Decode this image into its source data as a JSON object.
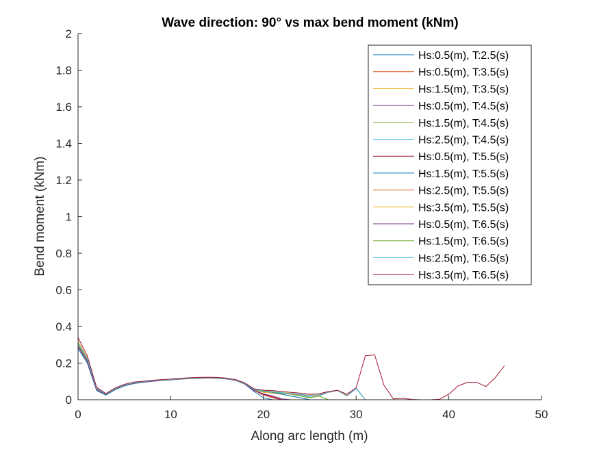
{
  "chart_data": {
    "type": "line",
    "title": "Wave direction: 90° vs max bend moment (kNm)",
    "xlabel": "Along arc length (m)",
    "ylabel": "Bend moment (kNm)",
    "xlim": [
      0,
      50
    ],
    "ylim": [
      0,
      2
    ],
    "xticks": [
      0,
      10,
      20,
      30,
      40,
      50
    ],
    "yticks": [
      0,
      0.2,
      0.4,
      0.6,
      0.8,
      1,
      1.2,
      1.4,
      1.6,
      1.8,
      2
    ],
    "xtick_labels": [
      "0",
      "10",
      "20",
      "30",
      "40",
      "50"
    ],
    "ytick_labels": [
      "0",
      "0.2",
      "0.4",
      "0.6",
      "0.8",
      "1",
      "1.2",
      "1.4",
      "1.6",
      "1.8",
      "2"
    ],
    "grid": false,
    "legend_position": "top-right",
    "x": [
      0,
      1,
      2,
      3,
      4,
      5,
      6,
      7,
      8,
      9,
      10,
      11,
      12,
      13,
      14,
      15,
      16,
      17,
      18,
      19,
      20,
      21,
      22,
      23,
      24,
      25,
      26,
      27,
      28,
      29,
      30,
      31,
      32,
      33,
      34,
      35,
      36,
      37,
      38,
      39,
      40,
      41,
      42,
      43,
      44,
      45,
      46
    ],
    "series": [
      {
        "name": "Hs:0.5(m), T:2.5(s)",
        "color": "#0072bd",
        "values": [
          0.28,
          0.2,
          0.05,
          0.025,
          0.055,
          0.075,
          0.088,
          0.095,
          0.1,
          0.105,
          0.108,
          0.112,
          0.115,
          0.117,
          0.118,
          0.117,
          0.113,
          0.105,
          0.085,
          0.045,
          0.01,
          0.0,
          0.0,
          0.0,
          0.0,
          0.0,
          0.0,
          0.0,
          0.0,
          0.0,
          0.0,
          0.0,
          0.0,
          0.0,
          0.0,
          0.0,
          0.0,
          0.0,
          0.0,
          0.0,
          0.0,
          0.0,
          0.0,
          0.0,
          0.0,
          0.0,
          0.0
        ]
      },
      {
        "name": "Hs:0.5(m), T:3.5(s)",
        "color": "#d95319",
        "values": [
          0.29,
          0.21,
          0.055,
          0.028,
          0.058,
          0.078,
          0.09,
          0.097,
          0.102,
          0.106,
          0.109,
          0.113,
          0.116,
          0.118,
          0.119,
          0.118,
          0.114,
          0.106,
          0.087,
          0.05,
          0.025,
          0.01,
          0.0,
          0.0,
          0.0,
          0.0,
          0.0,
          0.0,
          0.0,
          0.0,
          0.0,
          0.0,
          0.0,
          0.0,
          0.0,
          0.0,
          0.0,
          0.0,
          0.0,
          0.0,
          0.0,
          0.0,
          0.0,
          0.0,
          0.0,
          0.0,
          0.0
        ]
      },
      {
        "name": "Hs:1.5(m), T:3.5(s)",
        "color": "#edb120",
        "values": [
          0.3,
          0.215,
          0.058,
          0.03,
          0.06,
          0.08,
          0.092,
          0.098,
          0.103,
          0.107,
          0.11,
          0.114,
          0.117,
          0.119,
          0.12,
          0.119,
          0.115,
          0.107,
          0.088,
          0.052,
          0.04,
          0.035,
          0.03,
          0.02,
          0.01,
          0.0,
          0.0,
          0.0,
          0.0,
          0.0,
          0.0,
          0.0,
          0.0,
          0.0,
          0.0,
          0.0,
          0.0,
          0.0,
          0.0,
          0.0,
          0.0,
          0.0,
          0.0,
          0.0,
          0.0,
          0.0,
          0.0
        ]
      },
      {
        "name": "Hs:0.5(m), T:4.5(s)",
        "color": "#7e2f8e",
        "values": [
          0.29,
          0.21,
          0.056,
          0.029,
          0.059,
          0.079,
          0.091,
          0.097,
          0.102,
          0.106,
          0.109,
          0.113,
          0.116,
          0.118,
          0.119,
          0.118,
          0.114,
          0.106,
          0.087,
          0.05,
          0.03,
          0.015,
          0.0,
          0.0,
          0.0,
          0.0,
          0.0,
          0.0,
          0.0,
          0.0,
          0.0,
          0.0,
          0.0,
          0.0,
          0.0,
          0.0,
          0.0,
          0.0,
          0.0,
          0.0,
          0.0,
          0.0,
          0.0,
          0.0,
          0.0,
          0.0,
          0.0
        ]
      },
      {
        "name": "Hs:1.5(m), T:4.5(s)",
        "color": "#77ac30",
        "values": [
          0.3,
          0.22,
          0.06,
          0.03,
          0.06,
          0.08,
          0.092,
          0.098,
          0.103,
          0.107,
          0.11,
          0.114,
          0.117,
          0.119,
          0.12,
          0.119,
          0.115,
          0.107,
          0.088,
          0.055,
          0.045,
          0.04,
          0.035,
          0.03,
          0.02,
          0.01,
          0.02,
          0.0,
          0.0,
          0.0,
          0.0,
          0.0,
          0.0,
          0.0,
          0.0,
          0.0,
          0.0,
          0.0,
          0.0,
          0.0,
          0.0,
          0.0,
          0.0,
          0.0,
          0.0,
          0.0,
          0.0
        ]
      },
      {
        "name": "Hs:2.5(m), T:4.5(s)",
        "color": "#4dbeee",
        "values": [
          0.31,
          0.225,
          0.062,
          0.031,
          0.061,
          0.081,
          0.093,
          0.099,
          0.104,
          0.108,
          0.111,
          0.115,
          0.118,
          0.12,
          0.121,
          0.12,
          0.116,
          0.108,
          0.089,
          0.057,
          0.048,
          0.043,
          0.038,
          0.032,
          0.025,
          0.015,
          0.02,
          0.04,
          0.05,
          0.02,
          0.06,
          0.0,
          0.0,
          0.0,
          0.0,
          0.0,
          0.0,
          0.0,
          0.0,
          0.0,
          0.0,
          0.0,
          0.0,
          0.0,
          0.0,
          0.0,
          0.0
        ]
      },
      {
        "name": "Hs:0.5(m), T:5.5(s)",
        "color": "#a2142f",
        "values": [
          0.29,
          0.21,
          0.056,
          0.029,
          0.059,
          0.079,
          0.091,
          0.097,
          0.102,
          0.106,
          0.109,
          0.113,
          0.116,
          0.118,
          0.119,
          0.118,
          0.114,
          0.106,
          0.087,
          0.05,
          0.03,
          0.015,
          0.0,
          0.0,
          0.0,
          0.0,
          0.0,
          0.0,
          0.0,
          0.0,
          0.0,
          0.0,
          0.0,
          0.0,
          0.0,
          0.0,
          0.0,
          0.0,
          0.0,
          0.0,
          0.0,
          0.0,
          0.0,
          0.0,
          0.0,
          0.0,
          0.0
        ]
      },
      {
        "name": "Hs:1.5(m), T:5.5(s)",
        "color": "#0072bd",
        "values": [
          0.3,
          0.22,
          0.06,
          0.03,
          0.06,
          0.08,
          0.092,
          0.098,
          0.103,
          0.107,
          0.11,
          0.114,
          0.117,
          0.119,
          0.12,
          0.119,
          0.115,
          0.107,
          0.088,
          0.055,
          0.045,
          0.04,
          0.03,
          0.02,
          0.01,
          0.0,
          0.0,
          0.0,
          0.0,
          0.0,
          0.0,
          0.0,
          0.0,
          0.0,
          0.0,
          0.0,
          0.0,
          0.0,
          0.0,
          0.0,
          0.0,
          0.0,
          0.0,
          0.0,
          0.0,
          0.0,
          0.0
        ]
      },
      {
        "name": "Hs:2.5(m), T:5.5(s)",
        "color": "#d95319",
        "values": [
          0.31,
          0.225,
          0.062,
          0.031,
          0.061,
          0.081,
          0.093,
          0.099,
          0.104,
          0.108,
          0.111,
          0.115,
          0.118,
          0.12,
          0.121,
          0.12,
          0.116,
          0.108,
          0.089,
          0.057,
          0.048,
          0.043,
          0.038,
          0.033,
          0.028,
          0.022,
          0.025,
          0.04,
          0.05,
          0.02,
          0.065,
          0.0,
          0.0,
          0.0,
          0.0,
          0.0,
          0.0,
          0.0,
          0.0,
          0.0,
          0.0,
          0.0,
          0.0,
          0.0,
          0.0,
          0.0,
          0.0
        ]
      },
      {
        "name": "Hs:3.5(m), T:5.5(s)",
        "color": "#edb120",
        "values": [
          0.32,
          0.23,
          0.064,
          0.032,
          0.062,
          0.082,
          0.094,
          0.1,
          0.105,
          0.109,
          0.112,
          0.116,
          0.119,
          0.121,
          0.122,
          0.121,
          0.117,
          0.109,
          0.09,
          0.058,
          0.05,
          0.045,
          0.04,
          0.035,
          0.03,
          0.025,
          0.028,
          0.042,
          0.05,
          0.025,
          0.065,
          0.0,
          0.0,
          0.0,
          0.0,
          0.0,
          0.0,
          0.0,
          0.0,
          0.0,
          0.0,
          0.0,
          0.0,
          0.0,
          0.0,
          0.0,
          0.0
        ]
      },
      {
        "name": "Hs:0.5(m), T:6.5(s)",
        "color": "#7e2f8e",
        "values": [
          0.29,
          0.21,
          0.056,
          0.029,
          0.059,
          0.079,
          0.091,
          0.097,
          0.102,
          0.106,
          0.109,
          0.113,
          0.116,
          0.118,
          0.119,
          0.118,
          0.114,
          0.106,
          0.087,
          0.05,
          0.032,
          0.02,
          0.005,
          0.0,
          0.0,
          0.0,
          0.0,
          0.0,
          0.0,
          0.0,
          0.0,
          0.0,
          0.0,
          0.0,
          0.0,
          0.0,
          0.0,
          0.0,
          0.0,
          0.0,
          0.0,
          0.0,
          0.0,
          0.0,
          0.0,
          0.0,
          0.0
        ]
      },
      {
        "name": "Hs:1.5(m), T:6.5(s)",
        "color": "#77ac30",
        "values": [
          0.3,
          0.22,
          0.06,
          0.03,
          0.06,
          0.08,
          0.092,
          0.098,
          0.103,
          0.107,
          0.11,
          0.114,
          0.117,
          0.119,
          0.12,
          0.119,
          0.115,
          0.107,
          0.088,
          0.055,
          0.046,
          0.042,
          0.036,
          0.03,
          0.02,
          0.012,
          0.02,
          0.0,
          0.0,
          0.0,
          0.0,
          0.0,
          0.0,
          0.0,
          0.0,
          0.0,
          0.0,
          0.0,
          0.0,
          0.0,
          0.0,
          0.0,
          0.0,
          0.0,
          0.0,
          0.0,
          0.0
        ]
      },
      {
        "name": "Hs:2.5(m), T:6.5(s)",
        "color": "#4dbeee",
        "values": [
          0.31,
          0.225,
          0.062,
          0.031,
          0.061,
          0.081,
          0.093,
          0.099,
          0.104,
          0.108,
          0.111,
          0.115,
          0.118,
          0.12,
          0.121,
          0.12,
          0.116,
          0.108,
          0.089,
          0.057,
          0.048,
          0.044,
          0.039,
          0.034,
          0.03,
          0.024,
          0.027,
          0.042,
          0.05,
          0.022,
          0.065,
          0.0,
          0.0,
          0.0,
          0.0,
          0.0,
          0.0,
          0.0,
          0.0,
          0.0,
          0.0,
          0.0,
          0.0,
          0.0,
          0.0,
          0.0,
          0.0
        ]
      },
      {
        "name": "Hs:3.5(m), T:6.5(s)",
        "color": "#a2142f",
        "values": [
          0.34,
          0.24,
          0.068,
          0.034,
          0.064,
          0.084,
          0.096,
          0.101,
          0.106,
          0.11,
          0.113,
          0.117,
          0.12,
          0.122,
          0.123,
          0.122,
          0.118,
          0.11,
          0.092,
          0.06,
          0.052,
          0.05,
          0.045,
          0.04,
          0.036,
          0.03,
          0.032,
          0.045,
          0.052,
          0.03,
          0.065,
          0.24,
          0.245,
          0.08,
          0.005,
          0.008,
          0.002,
          0.0,
          0.0,
          0.003,
          0.03,
          0.075,
          0.095,
          0.095,
          0.072,
          0.12,
          0.185
        ]
      }
    ]
  }
}
